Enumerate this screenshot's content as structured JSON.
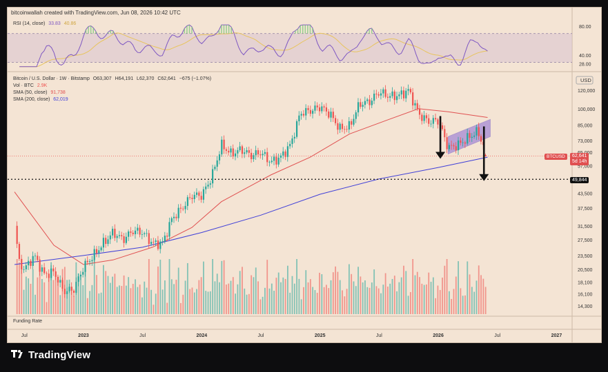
{
  "header": {
    "caption": "bitcoinwallah created with TradingView.com, Jun 08, 2026 10:42 UTC"
  },
  "rsi_pane": {
    "label": "RSI (14, close)",
    "rsi_value": "33.83",
    "ma_value": "40.86",
    "rsi_color": "#7e57c2",
    "ma_color": "#e8c45c",
    "scale": [
      "80.00",
      "40.00",
      "28.00"
    ],
    "upper_band": 70,
    "lower_band": 30
  },
  "legend": {
    "symbol": "Bitcoin / U.S. Dollar · 1W · Bitstamp",
    "open": "O63,307",
    "high": "H64,191",
    "low": "L62,370",
    "close": "C62,641",
    "change": "−675 (−1.07%)",
    "vol_label": "Vol · BTC",
    "vol_value": "2.9K",
    "sma50_label": "SMA (50, close)",
    "sma50_value": "91,738",
    "sma200_label": "SMA (200, close)",
    "sma200_value": "62,019"
  },
  "price_axis": {
    "currency": "USD",
    "ticks": [
      "120,000",
      "100,000",
      "85,000",
      "73,000",
      "65,000",
      "57,000",
      "49,844",
      "43,500",
      "37,500",
      "31,500",
      "27,500",
      "23,500",
      "20,500",
      "18,100",
      "16,100",
      "14,300"
    ],
    "last_label": "BTCUSD",
    "last_price": "62,641",
    "countdown": "5d 14h",
    "level_label": "49,844",
    "level_price": 49844
  },
  "time_axis": {
    "ticks": [
      "Jul",
      "2023",
      "Jul",
      "2024",
      "Jul",
      "2025",
      "Jul",
      "2026",
      "Jul",
      "2027"
    ]
  },
  "funding_pane": {
    "label": "Funding Rate"
  },
  "branding": {
    "name": "TradingView"
  },
  "colors": {
    "up": "#26a69a",
    "down": "#ef5350",
    "sma50": "#e05050",
    "sma200": "#3f3fd8",
    "channel": "#8a6ad6",
    "background": "#f4e4d4"
  },
  "chart_data": {
    "type": "candlestick",
    "title": "Bitcoin / U.S. Dollar · 1W · Bitstamp",
    "x_range": [
      "2022-06",
      "2027-03"
    ],
    "y_scale": "log",
    "ylim": [
      14300,
      125000
    ],
    "price_path": [
      [
        "2022-06",
        31500
      ],
      [
        "2022-06-15",
        22000
      ],
      [
        "2022-07",
        20500
      ],
      [
        "2022-08",
        23500
      ],
      [
        "2022-09",
        19500
      ],
      [
        "2022-10",
        20000
      ],
      [
        "2022-11",
        16500
      ],
      [
        "2022-12",
        16800
      ],
      [
        "2023-01",
        21000
      ],
      [
        "2023-02",
        23500
      ],
      [
        "2023-03",
        26500
      ],
      [
        "2023-04",
        29500
      ],
      [
        "2023-05",
        27500
      ],
      [
        "2023-06",
        30000
      ],
      [
        "2023-07",
        29500
      ],
      [
        "2023-08",
        26500
      ],
      [
        "2023-09",
        26500
      ],
      [
        "2023-10",
        34000
      ],
      [
        "2023-11",
        37500
      ],
      [
        "2023-12",
        42500
      ],
      [
        "2024-01",
        42500
      ],
      [
        "2024-02",
        51000
      ],
      [
        "2024-03",
        70000
      ],
      [
        "2024-04",
        64000
      ],
      [
        "2024-05",
        67000
      ],
      [
        "2024-06",
        63000
      ],
      [
        "2024-07",
        65000
      ],
      [
        "2024-08",
        59000
      ],
      [
        "2024-09",
        62000
      ],
      [
        "2024-10",
        70000
      ],
      [
        "2024-11",
        96000
      ],
      [
        "2024-12",
        98000
      ],
      [
        "2025-01",
        102000
      ],
      [
        "2025-02",
        95000
      ],
      [
        "2025-03",
        82000
      ],
      [
        "2025-04",
        84000
      ],
      [
        "2025-05",
        105000
      ],
      [
        "2025-06",
        107000
      ],
      [
        "2025-07",
        118000
      ],
      [
        "2025-08",
        113000
      ],
      [
        "2025-09",
        114000
      ],
      [
        "2025-10",
        120000
      ],
      [
        "2025-11",
        95000
      ],
      [
        "2025-12",
        88000
      ],
      [
        "2026-01",
        89000
      ],
      [
        "2026-02",
        68000
      ],
      [
        "2026-03",
        70000
      ],
      [
        "2026-04",
        75000
      ],
      [
        "2026-05",
        80000
      ],
      [
        "2026-06",
        62641
      ]
    ],
    "series": [
      {
        "name": "SMA (50, close)",
        "values": [
          [
            "2022-06",
            44000
          ],
          [
            "2022-10",
            26000
          ],
          [
            "2023-01",
            21500
          ],
          [
            "2023-04",
            22500
          ],
          [
            "2023-08",
            25500
          ],
          [
            "2023-12",
            31000
          ],
          [
            "2024-03",
            40000
          ],
          [
            "2024-08",
            52000
          ],
          [
            "2024-12",
            62000
          ],
          [
            "2025-04",
            78000
          ],
          [
            "2025-08",
            90000
          ],
          [
            "2025-11",
            100000
          ],
          [
            "2026-02",
            97000
          ],
          [
            "2026-06",
            91738
          ]
        ]
      },
      {
        "name": "SMA (200, close)",
        "values": [
          [
            "2022-06",
            21500
          ],
          [
            "2023-01",
            23500
          ],
          [
            "2023-07",
            25500
          ],
          [
            "2024-01",
            29500
          ],
          [
            "2024-07",
            35000
          ],
          [
            "2025-01",
            43000
          ],
          [
            "2025-07",
            50000
          ],
          [
            "2026-01",
            56000
          ],
          [
            "2026-06",
            62019
          ]
        ]
      }
    ],
    "levels": [
      49844
    ],
    "annotations": [
      "rising channel 2026-02 to 2026-06",
      "two down arrows"
    ]
  }
}
